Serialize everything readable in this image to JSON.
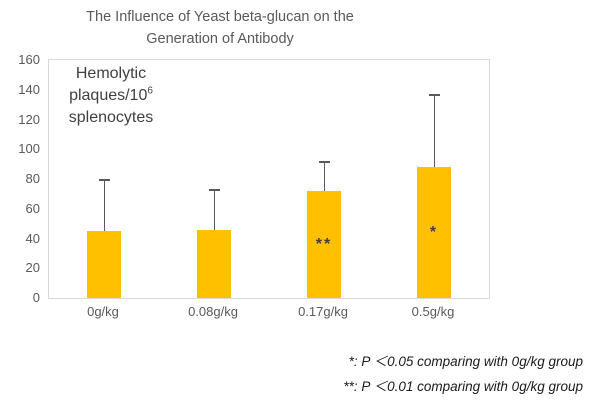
{
  "title": "The Influence of Yeast beta-glucan on the\nGeneration of Antibody",
  "plot": {
    "axis_label": {
      "line1": "Hemolytic",
      "line2_base": "plaques/10",
      "line2_sup": "6",
      "line3": "splenocytes"
    }
  },
  "footnotes": [
    "*: P ＜0.05 comparing with 0g/kg group",
    "**: P ＜0.01 comparing with 0g/kg group"
  ],
  "colors": {
    "bar": "#FFC000",
    "error_bar": "#595959",
    "plot_border": "#D9D9D9",
    "title_text": "#595959",
    "tick_text": "#595959",
    "axis_label_text": "#404040",
    "marker_text": "#404040",
    "footnote_text": "#1A1A1A"
  },
  "chart_data": {
    "type": "bar",
    "title": "The Influence of Yeast beta-glucan on the Generation of Antibody",
    "categories": [
      "0g/kg",
      "0.08g/kg",
      "0.17g/kg",
      "0.5g/kg"
    ],
    "values": [
      45,
      46,
      72,
      88
    ],
    "error_upper": [
      35,
      27,
      20,
      49
    ],
    "significance": [
      "",
      "",
      "**",
      "*"
    ],
    "xlabel": "",
    "ylabel": "Hemolytic plaques/10⁶ splenocytes",
    "ylim": [
      0,
      160
    ],
    "ytick_step": 20,
    "grid": false,
    "legend": false,
    "bar_color": "#FFC000"
  }
}
